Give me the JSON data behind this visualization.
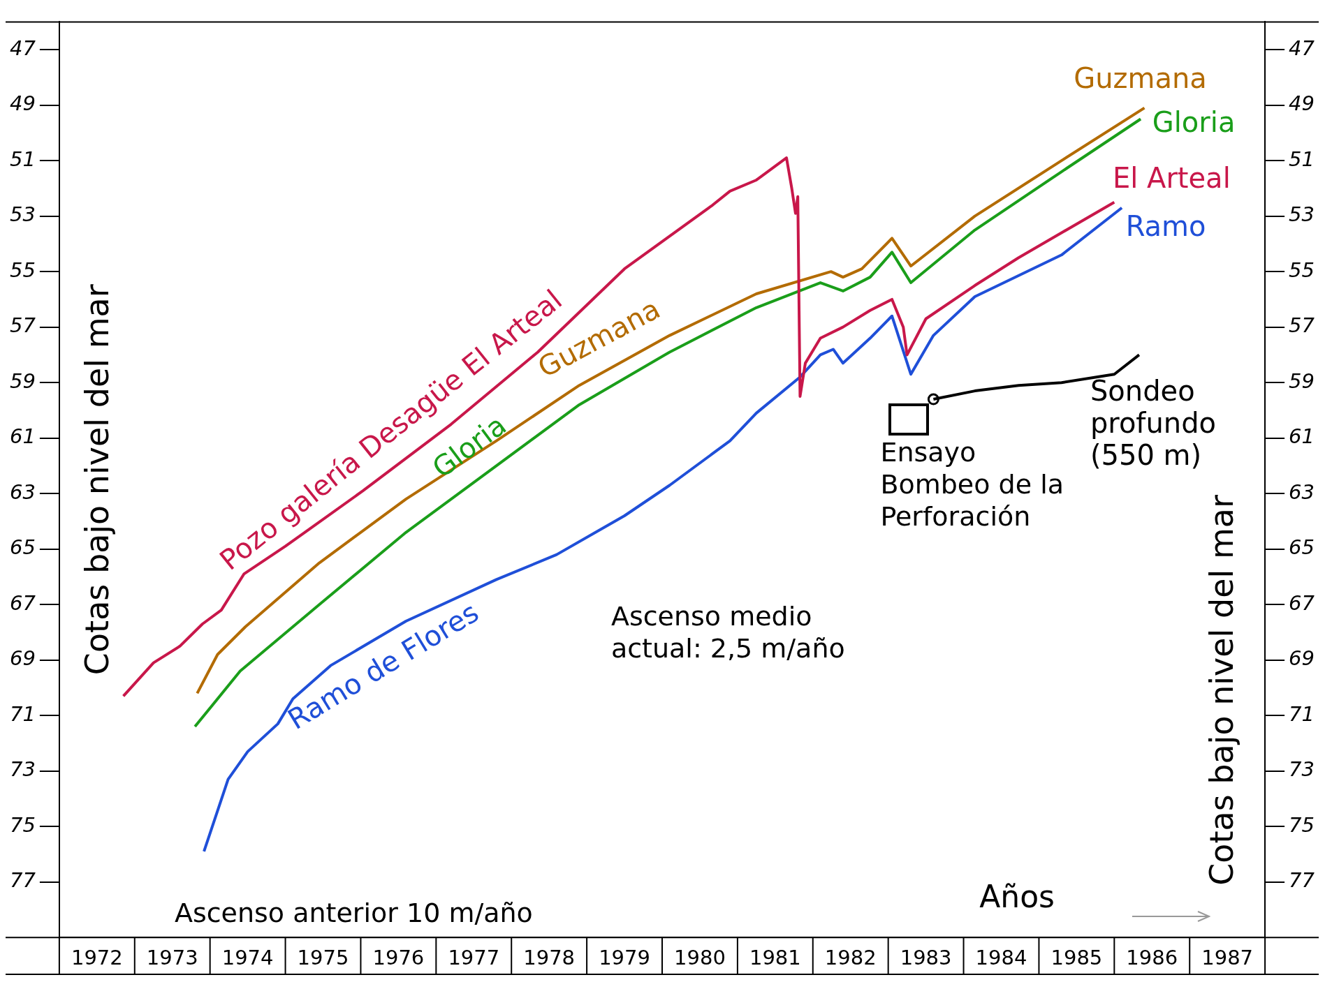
{
  "chart_data": {
    "type": "line",
    "ylabel": "Cotas bajo nivel del mar",
    "y2label": "Cotas bajo nivel del mar",
    "xlabel": "Años",
    "xlim": [
      1972,
      1988
    ],
    "xticks": [
      {
        "value": 1972.5,
        "label": "1972"
      },
      {
        "value": 1973.5,
        "label": "1973"
      },
      {
        "value": 1974.5,
        "label": "1974"
      },
      {
        "value": 1975.5,
        "label": "1975"
      },
      {
        "value": 1976.5,
        "label": "1976"
      },
      {
        "value": 1977.5,
        "label": "1977"
      },
      {
        "value": 1978.5,
        "label": "1978"
      },
      {
        "value": 1979.5,
        "label": "1979"
      },
      {
        "value": 1980.5,
        "label": "1980"
      },
      {
        "value": 1981.5,
        "label": "1981"
      },
      {
        "value": 1982.5,
        "label": "1982"
      },
      {
        "value": 1983.5,
        "label": "1983"
      },
      {
        "value": 1984.5,
        "label": "1984"
      },
      {
        "value": 1985.5,
        "label": "1985"
      },
      {
        "value": 1986.5,
        "label": "1986"
      },
      {
        "value": 1987.5,
        "label": "1987"
      }
    ],
    "ylim": [
      79,
      46
    ],
    "yticks": [
      47,
      49,
      51,
      53,
      55,
      57,
      59,
      61,
      63,
      65,
      67,
      69,
      71,
      73,
      75,
      77
    ],
    "y2lim": [
      79,
      46
    ],
    "y2ticks": [
      47,
      49,
      51,
      53,
      55,
      57,
      59,
      61,
      63,
      65,
      67,
      69,
      71,
      73,
      75,
      77
    ],
    "series": [
      {
        "name": "Pozo galería Desagüe El Arteal",
        "color": "#c8174a",
        "x": [
          1972.85,
          1973.25,
          1973.6,
          1973.9,
          1974.15,
          1974.45,
          1975.0,
          1976.03,
          1977.2,
          1978.35,
          1979.5,
          1980.67,
          1980.9,
          1981.25,
          1981.65,
          1981.72,
          1981.77,
          1981.8,
          1981.83,
          1981.9,
          1982.1,
          1982.4,
          1982.76,
          1983.05,
          1983.2,
          1983.25,
          1983.5,
          1984.15,
          1984.73,
          1985.3,
          1986.0
        ],
        "values": [
          70.3,
          69.1,
          68.5,
          67.7,
          67.2,
          65.9,
          64.9,
          62.9,
          60.5,
          57.9,
          54.9,
          52.6,
          52.1,
          51.7,
          50.9,
          52.0,
          52.9,
          52.3,
          59.5,
          58.3,
          57.4,
          57.0,
          56.4,
          56.0,
          57.0,
          58.0,
          56.7,
          55.5,
          54.5,
          53.6,
          52.5
        ]
      },
      {
        "name": "Guzmana",
        "color": "#b36b00",
        "x": [
          1973.83,
          1974.1,
          1974.47,
          1975.45,
          1976.6,
          1977.8,
          1978.9,
          1980.1,
          1981.25,
          1982.24,
          1982.4,
          1982.65,
          1983.05,
          1983.3,
          1984.15,
          1985.3,
          1986.4
        ],
        "values": [
          70.2,
          68.8,
          67.8,
          65.5,
          63.2,
          61.1,
          59.1,
          57.3,
          55.8,
          55.0,
          55.2,
          54.9,
          53.8,
          54.8,
          53.0,
          51.0,
          49.1
        ]
      },
      {
        "name": "Gloria",
        "color": "#1a9e1a",
        "x": [
          1973.8,
          1974.4,
          1975.45,
          1976.6,
          1977.8,
          1978.9,
          1980.1,
          1981.25,
          1982.1,
          1982.4,
          1982.76,
          1983.05,
          1983.3,
          1984.15,
          1985.3,
          1986.35
        ],
        "values": [
          71.4,
          69.4,
          67.0,
          64.4,
          62.0,
          59.8,
          57.9,
          56.3,
          55.4,
          55.7,
          55.2,
          54.3,
          55.4,
          53.5,
          51.4,
          49.5
        ]
      },
      {
        "name": "Ramo de Flores",
        "color": "#1f4fd8",
        "x": [
          1973.92,
          1974.24,
          1974.5,
          1974.9,
          1975.1,
          1975.6,
          1976.6,
          1977.8,
          1978.6,
          1979.5,
          1980.1,
          1980.9,
          1981.25,
          1981.83,
          1982.1,
          1982.27,
          1982.4,
          1982.76,
          1983.05,
          1983.3,
          1983.6,
          1984.15,
          1985.3,
          1986.1
        ],
        "values": [
          75.9,
          73.3,
          72.3,
          71.3,
          70.4,
          69.2,
          67.6,
          66.1,
          65.2,
          63.8,
          62.7,
          61.1,
          60.1,
          58.8,
          58.0,
          57.8,
          58.3,
          57.4,
          56.6,
          58.7,
          57.3,
          55.9,
          54.4,
          52.7
        ]
      },
      {
        "name": "Sondeo profundo (550 m)",
        "color": "#000000",
        "x": [
          1983.6,
          1984.15,
          1984.73,
          1985.3,
          1986.0,
          1986.33
        ],
        "values": [
          59.6,
          59.3,
          59.1,
          59.0,
          58.7,
          58.0
        ]
      },
      {
        "type": "scatter",
        "color": "#000000",
        "marker": "circle",
        "x": [
          1983.6
        ],
        "values": [
          59.6
        ]
      }
    ],
    "annotations": [
      "Ascenso anterior 10 m/año",
      "Ascenso medio actual: 2,5 m/año",
      {
        "text": "Guzmana",
        "x": 1986.4,
        "y": 49.1
      },
      {
        "text": "Gloria",
        "x": 1986.35,
        "y": 49.5
      },
      {
        "text": "El Arteal",
        "x": 1986.0,
        "y": 52.5
      },
      {
        "text": "Ramo",
        "x": 1986.1,
        "y": 52.7
      },
      {
        "text": "Ensayo Bombeo de la Perforación",
        "x": 1983.6,
        "y": 59.6
      }
    ]
  }
}
